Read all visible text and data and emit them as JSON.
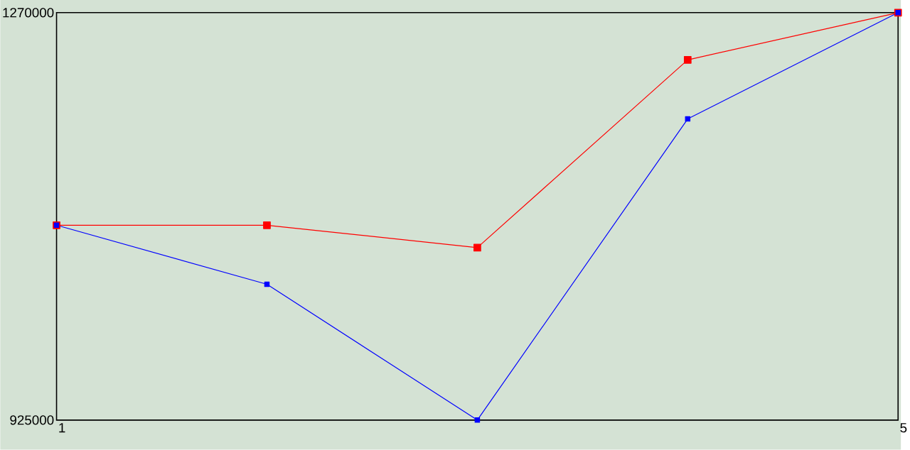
{
  "chart_data": {
    "type": "line",
    "x": [
      1,
      2,
      3,
      4,
      5
    ],
    "xlim": [
      1,
      5
    ],
    "xticks": [
      1,
      5
    ],
    "ylim": [
      925000,
      1270000
    ],
    "yticks": [
      925000,
      1270000
    ],
    "marker": "square",
    "series": [
      {
        "color": "#ff0000",
        "values": [
          1090000,
          1090000,
          1071000,
          1230000,
          1270000
        ]
      },
      {
        "color": "#0000ff",
        "values": [
          1090000,
          1040000,
          925000,
          1180000,
          1270000
        ]
      }
    ]
  }
}
